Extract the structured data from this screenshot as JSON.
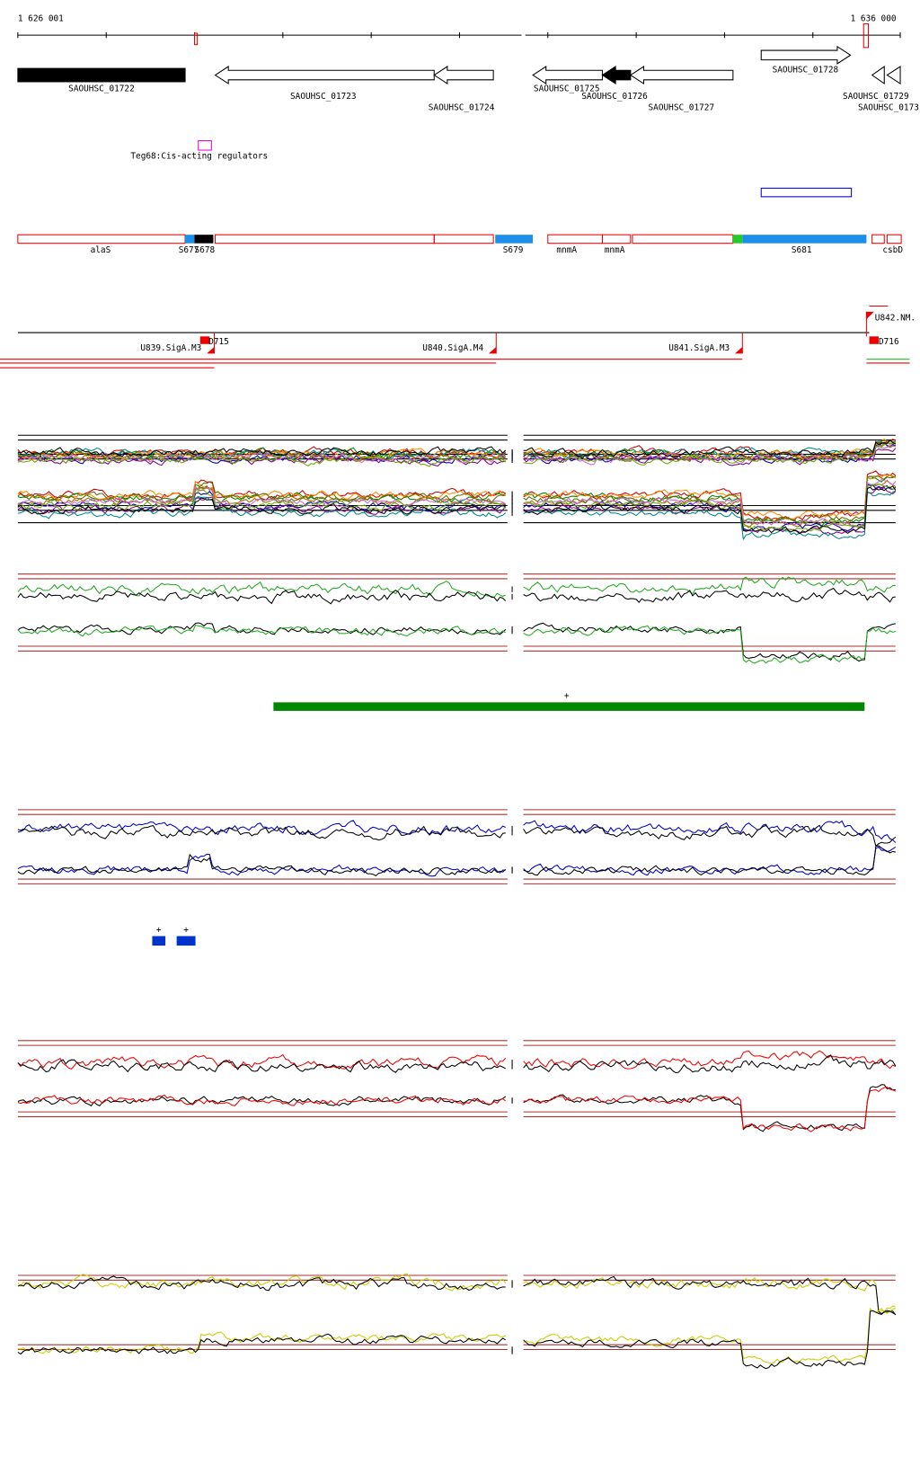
{
  "ruler": {
    "start": "1 626 001",
    "end": "1 636 000"
  },
  "genes": [
    "SAOUHSC_01722",
    "SAOUHSC_01723",
    "SAOUHSC_01724",
    "SAOUHSC_01725",
    "SAOUHSC_01726",
    "SAOUHSC_01727",
    "SAOUHSC_01728",
    "SAOUHSC_01729",
    "SAOUHSC_0173"
  ],
  "annotation": "Teg68:Cis-acting regulators",
  "segments": [
    "alaS",
    "S677",
    "S678",
    "S679",
    "mnmA",
    "mnmA",
    "S681",
    "csbD"
  ],
  "promoters": [
    "U839.SigA.M3",
    "D715",
    "U840.SigA.M4",
    "U841.SigA.M3",
    "U842.NM.",
    "D716"
  ],
  "marks": [
    "+",
    "+",
    "+"
  ]
}
